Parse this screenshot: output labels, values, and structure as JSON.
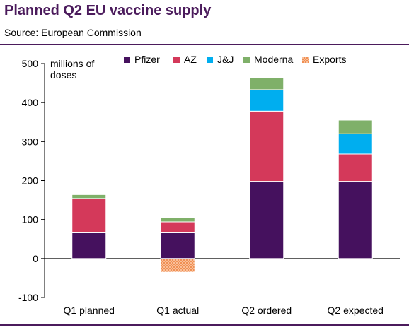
{
  "title": "Planned Q2 EU vaccine supply",
  "source": "Source:  European Commission",
  "chart_data": {
    "type": "bar",
    "stacked": true,
    "ylabel_line1": "millions of",
    "ylabel_line2": "doses",
    "categories": [
      "Q1 planned",
      "Q1 actual",
      "Q2 ordered",
      "Q2 expected"
    ],
    "ylim": [
      -100,
      500
    ],
    "yticks": [
      -100,
      0,
      100,
      200,
      300,
      400,
      500
    ],
    "grid": false,
    "legend_position": "top-right",
    "series": [
      {
        "name": "Pfizer",
        "color": "#45115e",
        "values": [
          66,
          66,
          198,
          198
        ]
      },
      {
        "name": "AZ",
        "color": "#d4395a",
        "values": [
          88,
          28,
          180,
          70
        ]
      },
      {
        "name": "J&J",
        "color": "#00aeef",
        "values": [
          0,
          0,
          55,
          52
        ]
      },
      {
        "name": "Moderna",
        "color": "#7fb069",
        "values": [
          10,
          10,
          30,
          35
        ]
      },
      {
        "name": "Exports",
        "color": "#f08a4b",
        "pattern": "hatched",
        "values": [
          0,
          -35,
          0,
          0
        ]
      }
    ]
  }
}
